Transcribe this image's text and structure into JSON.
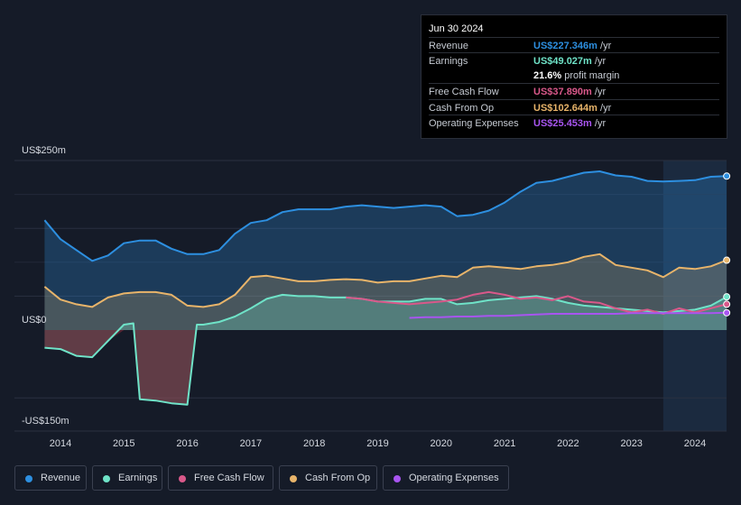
{
  "tooltip": {
    "date": "Jun 30 2024",
    "rows": [
      {
        "label": "Revenue",
        "value": "US$227.346m",
        "unit": "/yr",
        "color": "#2d8fe0"
      },
      {
        "label": "Earnings",
        "value": "US$49.027m",
        "unit": "/yr",
        "color": "#6fe3c8"
      },
      {
        "label": "",
        "value": "21.6%",
        "unit": "profit margin",
        "color": "#ffffff"
      },
      {
        "label": "Free Cash Flow",
        "value": "US$37.890m",
        "unit": "/yr",
        "color": "#d9588a"
      },
      {
        "label": "Cash From Op",
        "value": "US$102.644m",
        "unit": "/yr",
        "color": "#e8b46a"
      },
      {
        "label": "Operating Expenses",
        "value": "US$25.453m",
        "unit": "/yr",
        "color": "#a855f0"
      }
    ]
  },
  "legend": [
    {
      "label": "Revenue",
      "color": "#2d8fe0",
      "icon": "revenue-dot-icon"
    },
    {
      "label": "Earnings",
      "color": "#6fe3c8",
      "icon": "earnings-dot-icon"
    },
    {
      "label": "Free Cash Flow",
      "color": "#d9588a",
      "icon": "fcf-dot-icon"
    },
    {
      "label": "Cash From Op",
      "color": "#e8b46a",
      "icon": "cfo-dot-icon"
    },
    {
      "label": "Operating Expenses",
      "color": "#a855f0",
      "icon": "opex-dot-icon"
    }
  ],
  "chart_data": {
    "type": "line",
    "title": "",
    "xlabel": "",
    "ylabel": "",
    "ylim": [
      -150,
      250
    ],
    "y_tick_labels": [
      "US$250m",
      "US$0",
      "-US$150m"
    ],
    "y_ticks": [
      250,
      0,
      -150
    ],
    "x_tick_labels": [
      "2014",
      "2015",
      "2016",
      "2017",
      "2018",
      "2019",
      "2020",
      "2021",
      "2022",
      "2023",
      "2024"
    ],
    "x_ticks": [
      2014,
      2015,
      2016,
      2017,
      2018,
      2019,
      2020,
      2021,
      2022,
      2023,
      2024
    ],
    "xlim": [
      2013.4,
      2024.5
    ],
    "forecast_start": 2023.5,
    "series": [
      {
        "name": "Revenue",
        "color": "#2d8fe0",
        "fill": true,
        "x": [
          2013.75,
          2014.0,
          2014.25,
          2014.5,
          2014.75,
          2015.0,
          2015.25,
          2015.5,
          2015.75,
          2016.0,
          2016.25,
          2016.5,
          2016.75,
          2017.0,
          2017.25,
          2017.5,
          2017.75,
          2018.0,
          2018.25,
          2018.5,
          2018.75,
          2019.0,
          2019.25,
          2019.5,
          2019.75,
          2020.0,
          2020.25,
          2020.5,
          2020.75,
          2021.0,
          2021.25,
          2021.5,
          2021.75,
          2022.0,
          2022.25,
          2022.5,
          2022.75,
          2023.0,
          2023.25,
          2023.5,
          2023.75,
          2024.0,
          2024.25,
          2024.5
        ],
        "y": [
          162,
          134,
          118,
          102,
          110,
          128,
          132,
          132,
          120,
          112,
          112,
          118,
          142,
          158,
          162,
          174,
          178,
          178,
          178,
          182,
          184,
          182,
          180,
          182,
          184,
          182,
          168,
          170,
          176,
          188,
          204,
          217,
          220,
          226,
          232,
          234,
          228,
          226,
          220,
          219,
          220,
          221,
          226,
          227
        ]
      },
      {
        "name": "Cash From Op",
        "color": "#e8b46a",
        "fill": true,
        "x": [
          2013.75,
          2014.0,
          2014.25,
          2014.5,
          2014.75,
          2015.0,
          2015.25,
          2015.5,
          2015.75,
          2016.0,
          2016.25,
          2016.5,
          2016.75,
          2017.0,
          2017.25,
          2017.5,
          2017.75,
          2018.0,
          2018.25,
          2018.5,
          2018.75,
          2019.0,
          2019.25,
          2019.5,
          2019.75,
          2020.0,
          2020.25,
          2020.5,
          2020.75,
          2021.0,
          2021.25,
          2021.5,
          2021.75,
          2022.0,
          2022.25,
          2022.5,
          2022.75,
          2023.0,
          2023.25,
          2023.5,
          2023.75,
          2024.0,
          2024.25,
          2024.5
        ],
        "y": [
          64,
          45,
          38,
          34,
          48,
          54,
          56,
          56,
          52,
          36,
          34,
          38,
          52,
          78,
          80,
          76,
          72,
          72,
          74,
          75,
          74,
          70,
          72,
          72,
          76,
          80,
          78,
          92,
          94,
          92,
          90,
          94,
          96,
          100,
          108,
          112,
          96,
          92,
          88,
          78,
          92,
          90,
          94,
          103
        ]
      },
      {
        "name": "Earnings",
        "color": "#6fe3c8",
        "fill": true,
        "x": [
          2013.75,
          2014.0,
          2014.25,
          2014.5,
          2014.75,
          2015.0,
          2015.15,
          2015.25,
          2015.5,
          2015.75,
          2016.0,
          2016.15,
          2016.25,
          2016.5,
          2016.75,
          2017.0,
          2017.25,
          2017.5,
          2017.75,
          2018.0,
          2018.25,
          2018.5,
          2018.75,
          2019.0,
          2019.25,
          2019.5,
          2019.75,
          2020.0,
          2020.25,
          2020.5,
          2020.75,
          2021.0,
          2021.25,
          2021.5,
          2021.75,
          2022.0,
          2022.25,
          2022.5,
          2022.75,
          2023.0,
          2023.25,
          2023.5,
          2023.75,
          2024.0,
          2024.25,
          2024.5
        ],
        "y": [
          -26,
          -28,
          -38,
          -40,
          -16,
          8,
          10,
          -102,
          -104,
          -108,
          -110,
          8,
          8,
          12,
          20,
          32,
          46,
          52,
          50,
          50,
          48,
          48,
          46,
          42,
          42,
          42,
          46,
          46,
          38,
          40,
          44,
          46,
          48,
          50,
          46,
          40,
          36,
          34,
          32,
          30,
          28,
          26,
          28,
          30,
          36,
          49
        ]
      },
      {
        "name": "Free Cash Flow",
        "color": "#d9588a",
        "fill": false,
        "x": [
          2018.5,
          2018.75,
          2019.0,
          2019.25,
          2019.5,
          2019.75,
          2020.0,
          2020.25,
          2020.5,
          2020.75,
          2021.0,
          2021.25,
          2021.5,
          2021.75,
          2022.0,
          2022.25,
          2022.5,
          2022.75,
          2023.0,
          2023.25,
          2023.5,
          2023.75,
          2024.0,
          2024.25,
          2024.5
        ],
        "y": [
          48,
          46,
          42,
          40,
          38,
          40,
          42,
          45,
          52,
          56,
          52,
          46,
          48,
          44,
          50,
          42,
          40,
          32,
          26,
          30,
          24,
          32,
          26,
          32,
          38
        ]
      },
      {
        "name": "Operating Expenses",
        "color": "#a855f0",
        "fill": false,
        "x": [
          2019.5,
          2019.75,
          2020.0,
          2020.25,
          2020.5,
          2020.75,
          2021.0,
          2021.25,
          2021.5,
          2021.75,
          2022.0,
          2022.25,
          2022.5,
          2022.75,
          2023.0,
          2023.25,
          2023.5,
          2023.75,
          2024.0,
          2024.25,
          2024.5
        ],
        "y": [
          18,
          19,
          19,
          20,
          20,
          21,
          21,
          22,
          23,
          24,
          24,
          24,
          24,
          24,
          25,
          25,
          25,
          25,
          25,
          25,
          25.5
        ]
      }
    ]
  }
}
